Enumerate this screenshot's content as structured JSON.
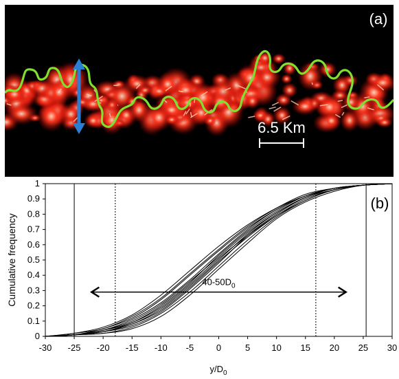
{
  "panel_a": {
    "label": "(a)",
    "scale_bar_label": "6.5 Km",
    "colors": {
      "background": "#000000",
      "flame": "#e0201a",
      "flame_core": "#ffd0b0",
      "contour": "#7fe030",
      "arrow": "#2a7fd4"
    }
  },
  "panel_b": {
    "label": "(b)"
  },
  "chart_data": {
    "type": "line",
    "title": "",
    "xlabel": "y/D",
    "xlabel_subscript": "0",
    "ylabel": "Cumulative frequency",
    "xlim": [
      -30,
      30
    ],
    "ylim": [
      0,
      1
    ],
    "xticks": [
      "-30",
      "-25",
      "-20",
      "-15",
      "-10",
      "-5",
      "0",
      "5",
      "10",
      "15",
      "20",
      "25",
      "30"
    ],
    "yticks": [
      "0",
      "0.1",
      "0.2",
      "0.3",
      "0.4",
      "0.5",
      "0.6",
      "0.7",
      "0.8",
      "0.9",
      "1"
    ],
    "vertical_lines": [
      {
        "x": -25,
        "style": "solid"
      },
      {
        "x": -17.9,
        "style": "dotted"
      },
      {
        "x": 16.8,
        "style": "dotted"
      },
      {
        "x": 25.5,
        "style": "solid"
      }
    ],
    "annotation": {
      "text": "40-50D",
      "text_subscript": "0",
      "arrow_from_x": -22,
      "arrow_to_x": 22,
      "arrow_y": 0.29
    },
    "curve_x": [
      -30,
      -25,
      -20,
      -15,
      -10,
      -5,
      0,
      5,
      10,
      15,
      20,
      25,
      30
    ],
    "series": [
      {
        "values": [
          0.0,
          0.01,
          0.04,
          0.1,
          0.21,
          0.36,
          0.52,
          0.68,
          0.81,
          0.91,
          0.96,
          0.99,
          1.0
        ]
      },
      {
        "values": [
          0.0,
          0.01,
          0.03,
          0.08,
          0.18,
          0.33,
          0.5,
          0.67,
          0.81,
          0.91,
          0.97,
          0.99,
          1.0
        ]
      },
      {
        "values": [
          0.0,
          0.01,
          0.05,
          0.12,
          0.24,
          0.4,
          0.56,
          0.71,
          0.83,
          0.92,
          0.97,
          0.99,
          1.0
        ]
      },
      {
        "values": [
          0.0,
          0.01,
          0.02,
          0.06,
          0.15,
          0.29,
          0.46,
          0.63,
          0.78,
          0.89,
          0.96,
          0.99,
          1.0
        ]
      },
      {
        "values": [
          0.0,
          0.02,
          0.06,
          0.14,
          0.27,
          0.43,
          0.59,
          0.73,
          0.84,
          0.92,
          0.97,
          0.99,
          1.0
        ]
      },
      {
        "values": [
          0.0,
          0.01,
          0.03,
          0.07,
          0.16,
          0.31,
          0.48,
          0.66,
          0.8,
          0.91,
          0.97,
          0.99,
          1.0
        ]
      },
      {
        "values": [
          0.0,
          0.01,
          0.04,
          0.11,
          0.22,
          0.37,
          0.54,
          0.7,
          0.83,
          0.92,
          0.97,
          0.99,
          1.0
        ]
      },
      {
        "values": [
          0.0,
          0.01,
          0.02,
          0.05,
          0.13,
          0.27,
          0.44,
          0.61,
          0.77,
          0.88,
          0.95,
          0.99,
          1.0
        ]
      },
      {
        "values": [
          0.0,
          0.01,
          0.04,
          0.09,
          0.19,
          0.34,
          0.51,
          0.66,
          0.79,
          0.89,
          0.96,
          0.99,
          1.0
        ]
      },
      {
        "values": [
          0.0,
          0.02,
          0.05,
          0.13,
          0.25,
          0.41,
          0.57,
          0.72,
          0.84,
          0.93,
          0.97,
          0.99,
          1.0
        ]
      },
      {
        "values": [
          0.0,
          0.01,
          0.03,
          0.08,
          0.17,
          0.32,
          0.49,
          0.65,
          0.79,
          0.9,
          0.96,
          0.99,
          1.0
        ]
      },
      {
        "values": [
          0.0,
          0.01,
          0.03,
          0.09,
          0.2,
          0.35,
          0.53,
          0.69,
          0.82,
          0.92,
          0.97,
          0.99,
          1.0
        ]
      }
    ]
  }
}
